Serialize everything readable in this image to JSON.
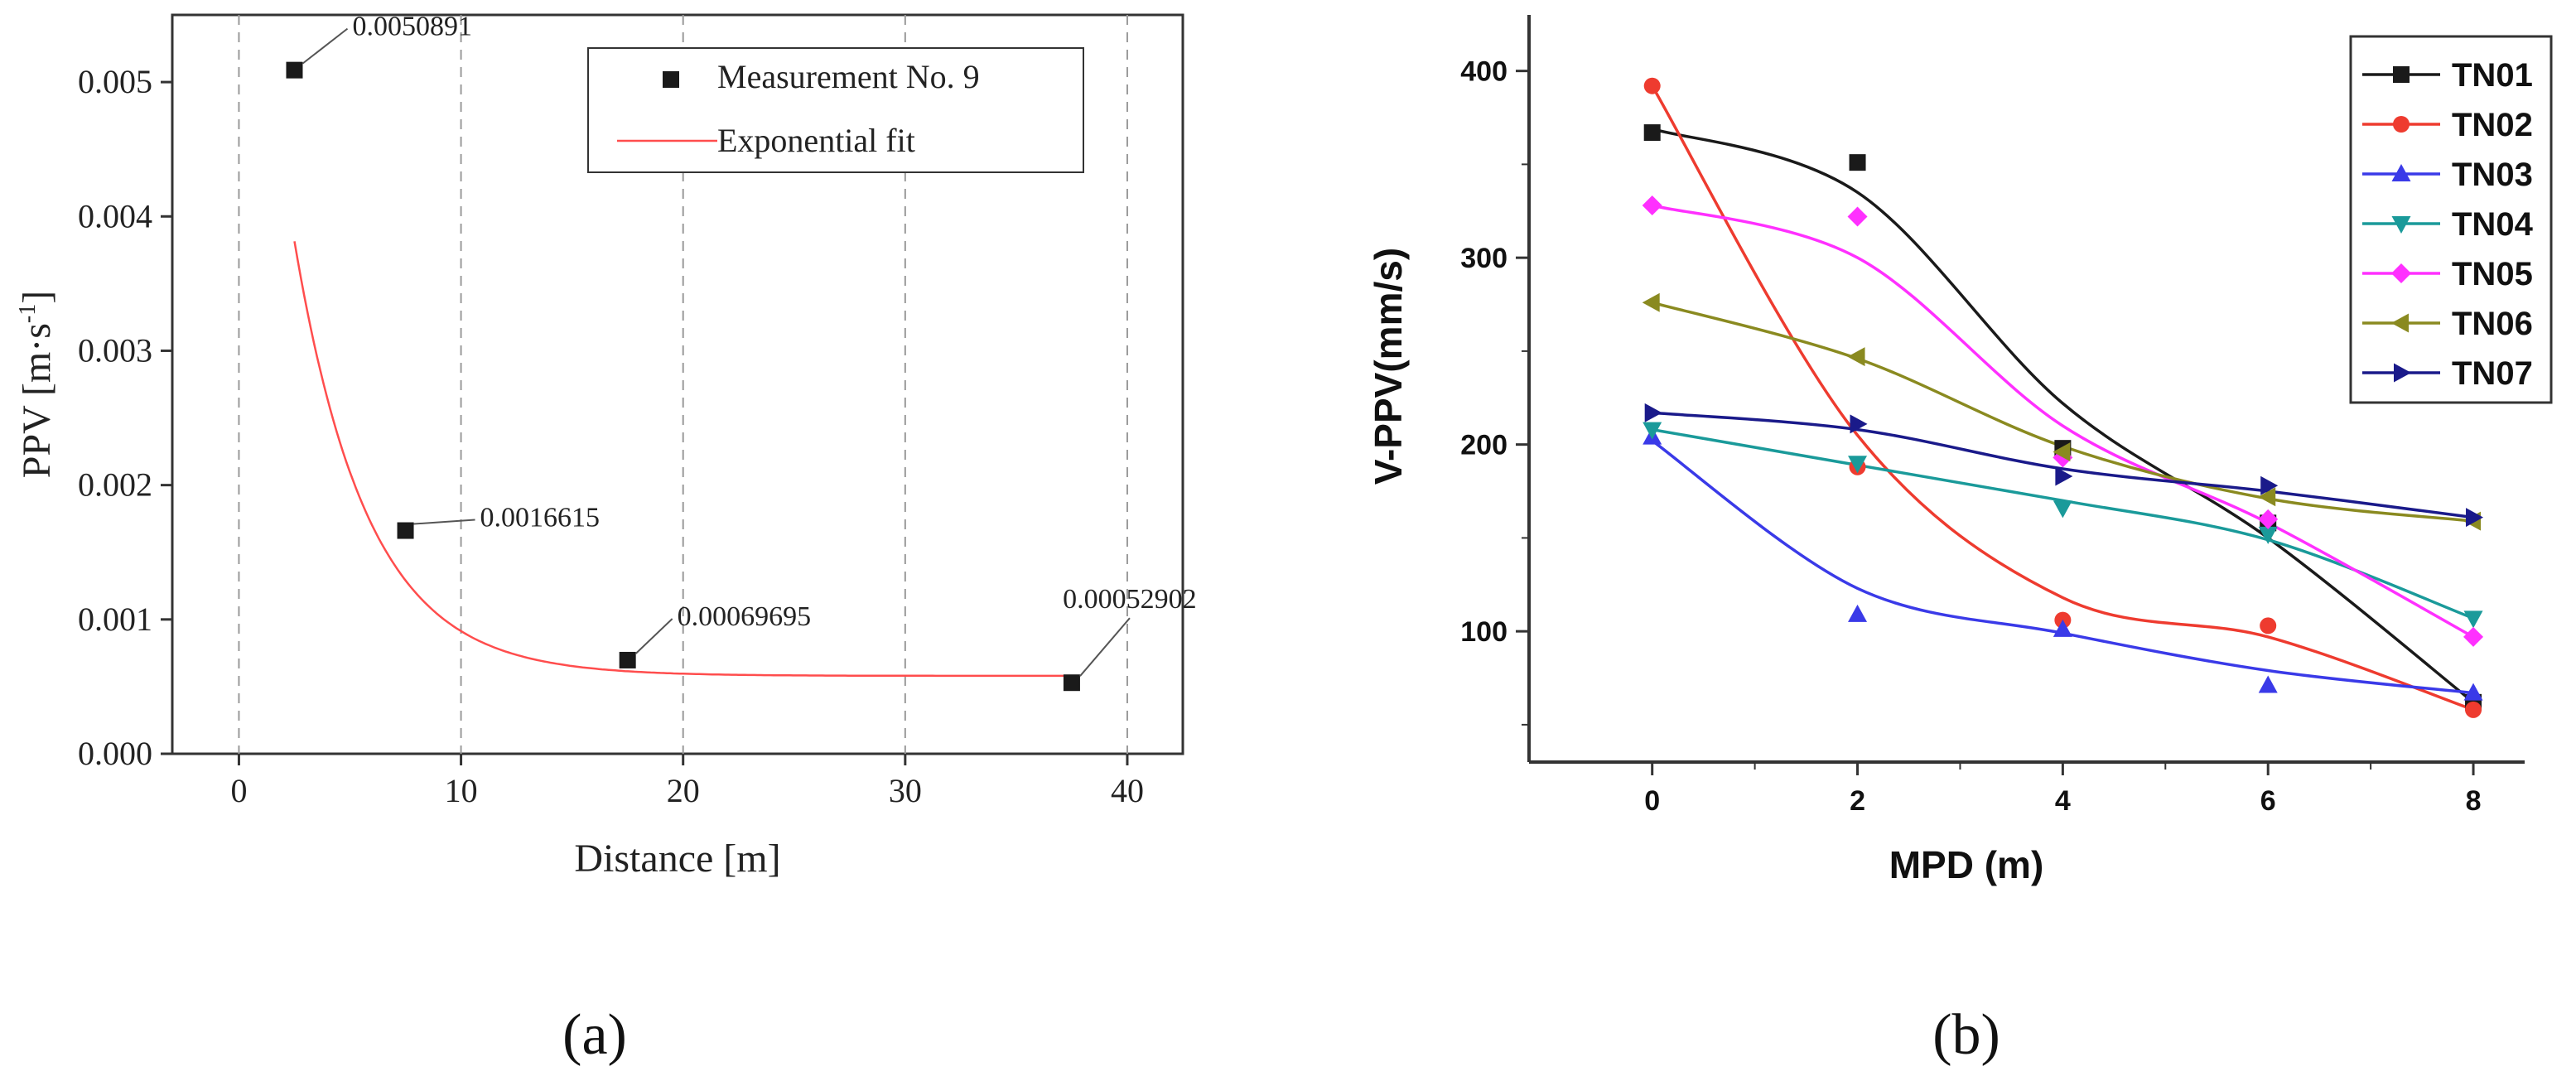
{
  "chart_data": [
    {
      "panel_label": "(a)",
      "type": "scatter",
      "title": "",
      "xlabel": "Distance [m]",
      "ylabel_main": "PPV [m·s",
      "ylabel_sup": "-1",
      "ylabel_end": "]",
      "xlim": [
        -3,
        42.5
      ],
      "ylim": [
        0,
        0.0055
      ],
      "xticks": [
        0,
        10,
        20,
        30,
        40
      ],
      "xtick_labels": [
        "0",
        "10",
        "20",
        "30",
        "40"
      ],
      "yticks": [
        0,
        0.001,
        0.002,
        0.003,
        0.004,
        0.005
      ],
      "ytick_labels": [
        "0.000",
        "0.001",
        "0.002",
        "0.003",
        "0.004",
        "0.005"
      ],
      "grid": "vertical dashed",
      "legend_position": "top-right",
      "series": [
        {
          "name": "Measurement No. 9",
          "kind": "points",
          "color": "#1a1a1a",
          "x": [
            2.5,
            7.5,
            17.5,
            37.5
          ],
          "values": [
            0.0050891,
            0.0016615,
            0.00069695,
            0.00052902
          ]
        },
        {
          "name": "Exponential fit",
          "kind": "curve",
          "color": "#ff4d4d",
          "model": {
            "y0": 0.00058,
            "A": 0.0069,
            "x0": 0,
            "t": 3.3
          },
          "x_range": [
            2.5,
            37.5
          ]
        }
      ],
      "annotations": [
        "0.0050891",
        "0.0016615",
        "0.00069695",
        "0.00052902"
      ]
    },
    {
      "panel_label": "(b)",
      "type": "line",
      "title": "",
      "xlabel": "MPD (m)",
      "ylabel": "V-PPV(mm/s)",
      "xlim": [
        -1.2,
        8.5
      ],
      "ylim": [
        30,
        430
      ],
      "xticks": [
        0,
        2,
        4,
        6,
        8
      ],
      "xtick_labels": [
        "0",
        "2",
        "4",
        "6",
        "8"
      ],
      "yticks": [
        100,
        200,
        300,
        400
      ],
      "ytick_labels": [
        "100",
        "200",
        "300",
        "400"
      ],
      "grid": "off",
      "legend_position": "top-right",
      "x": [
        0,
        2,
        4,
        6,
        8
      ],
      "series": [
        {
          "name": "TN01",
          "color": "#1a1a1a",
          "marker": "square",
          "values": [
            367,
            351,
            198,
            158,
            62
          ],
          "fit": [
            369,
            335,
            222,
            150,
            62
          ]
        },
        {
          "name": "TN02",
          "color": "#ee3b2f",
          "marker": "circle",
          "values": [
            392,
            188,
            106,
            103,
            58
          ],
          "fit": [
            392,
            205,
            118,
            97,
            58
          ]
        },
        {
          "name": "TN03",
          "color": "#3a3ae8",
          "marker": "triangle-up",
          "values": [
            204,
            109,
            101,
            71,
            67
          ],
          "fit": [
            202,
            123,
            99,
            79,
            67
          ]
        },
        {
          "name": "TN04",
          "color": "#1a9a9a",
          "marker": "triangle-down",
          "values": [
            208,
            190,
            166,
            152,
            107
          ],
          "fit": [
            208,
            189,
            170,
            149,
            107
          ]
        },
        {
          "name": "TN05",
          "color": "#ff30ff",
          "marker": "diamond",
          "values": [
            328,
            322,
            193,
            160,
            97
          ],
          "fit": [
            328,
            300,
            210,
            158,
            97
          ]
        },
        {
          "name": "TN06",
          "color": "#8a8a20",
          "marker": "triangle-left",
          "values": [
            276,
            247,
            196,
            172,
            159
          ],
          "fit": [
            276,
            246,
            199,
            171,
            159
          ]
        },
        {
          "name": "TN07",
          "color": "#1a1a8a",
          "marker": "triangle-right",
          "values": [
            217,
            211,
            183,
            178,
            161
          ],
          "fit": [
            217,
            208,
            187,
            175,
            161
          ]
        }
      ]
    }
  ]
}
